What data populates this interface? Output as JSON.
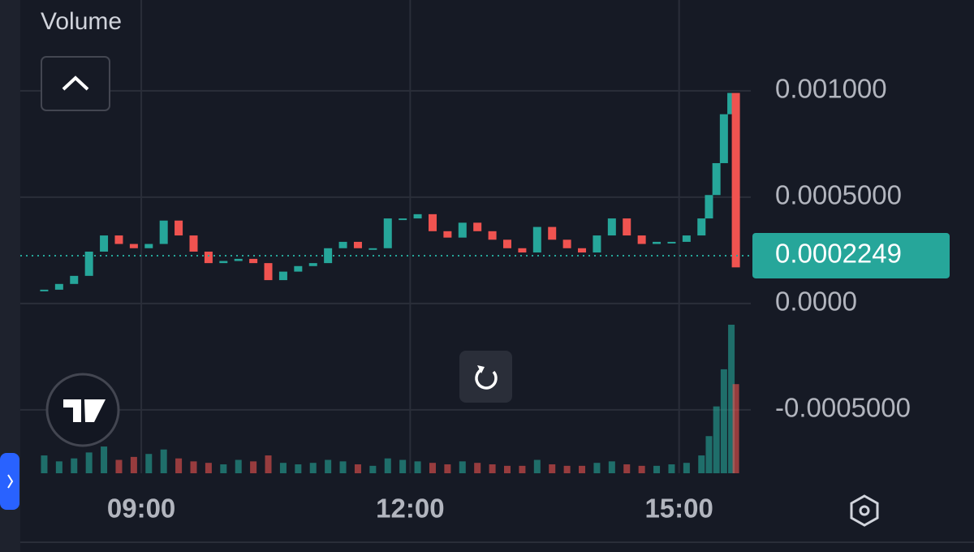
{
  "chart_data": {
    "type": "candlestick",
    "volume_label": "Volume",
    "x": [
      "07:55",
      "08:05",
      "08:15",
      "08:25",
      "08:35",
      "08:45",
      "08:55",
      "09:05",
      "09:15",
      "09:25",
      "09:35",
      "09:45",
      "09:55",
      "10:05",
      "10:15",
      "10:25",
      "10:35",
      "10:45",
      "10:55",
      "11:05",
      "11:15",
      "11:25",
      "11:35",
      "11:45",
      "11:55",
      "12:05",
      "12:15",
      "12:25",
      "12:35",
      "12:45",
      "12:55",
      "13:05",
      "13:15",
      "13:25",
      "13:35",
      "13:45",
      "13:55",
      "14:05",
      "14:15",
      "14:25",
      "14:35",
      "14:45",
      "14:55",
      "15:05",
      "15:15",
      "15:20",
      "15:25",
      "15:30",
      "15:35",
      "15:38"
    ],
    "series": [
      {
        "name": "Price",
        "up_color": "#26a69a",
        "down_color": "#ef5350",
        "values": [
          6.5e-05,
          9.2e-05,
          0.00013,
          0.000244,
          0.00032,
          0.00028,
          0.00026,
          0.00028,
          0.00039,
          0.00032,
          0.000244,
          0.00019,
          0.0002,
          0.00021,
          0.00019,
          0.00011,
          0.00015,
          0.000176,
          0.00019,
          0.00026,
          0.00029,
          0.00026,
          0.00026,
          0.0004,
          0.0004,
          0.00042,
          0.00034,
          0.00031,
          0.00038,
          0.00034,
          0.0003,
          0.00026,
          0.00024,
          0.00036,
          0.0003,
          0.00026,
          0.00024,
          0.00032,
          0.0004,
          0.00032,
          0.00028,
          0.00029,
          0.00029,
          0.00032,
          0.0004,
          0.00051,
          0.00066,
          0.00089,
          0.00099,
          0.00017
        ]
      },
      {
        "name": "Volume",
        "values": [
          12,
          8,
          10,
          14,
          18,
          9,
          11,
          13,
          16,
          10,
          8,
          7,
          6,
          9,
          8,
          12,
          7,
          6,
          7,
          9,
          8,
          6,
          5,
          10,
          9,
          8,
          7,
          6,
          8,
          7,
          6,
          5,
          5,
          9,
          6,
          5,
          5,
          7,
          8,
          6,
          5,
          5,
          6,
          7,
          12,
          25,
          45,
          70,
          100,
          60
        ]
      }
    ],
    "last_price": 0.0002249,
    "xlim": [
      "07:39",
      "15:48"
    ],
    "xticks": [
      "09:00",
      "12:00",
      "15:00"
    ],
    "ylim": [
      -0.000798,
      0.001427
    ],
    "yticks": [
      {
        "value": 0.001,
        "label": "0.001000"
      },
      {
        "value": 0.0005,
        "label": "0.0005000"
      },
      {
        "value": 0,
        "label": "0.0000"
      },
      {
        "value": -0.0005,
        "label": "-0.0005000"
      }
    ],
    "vlim": [
      0,
      100
    ],
    "grid": true
  }
}
